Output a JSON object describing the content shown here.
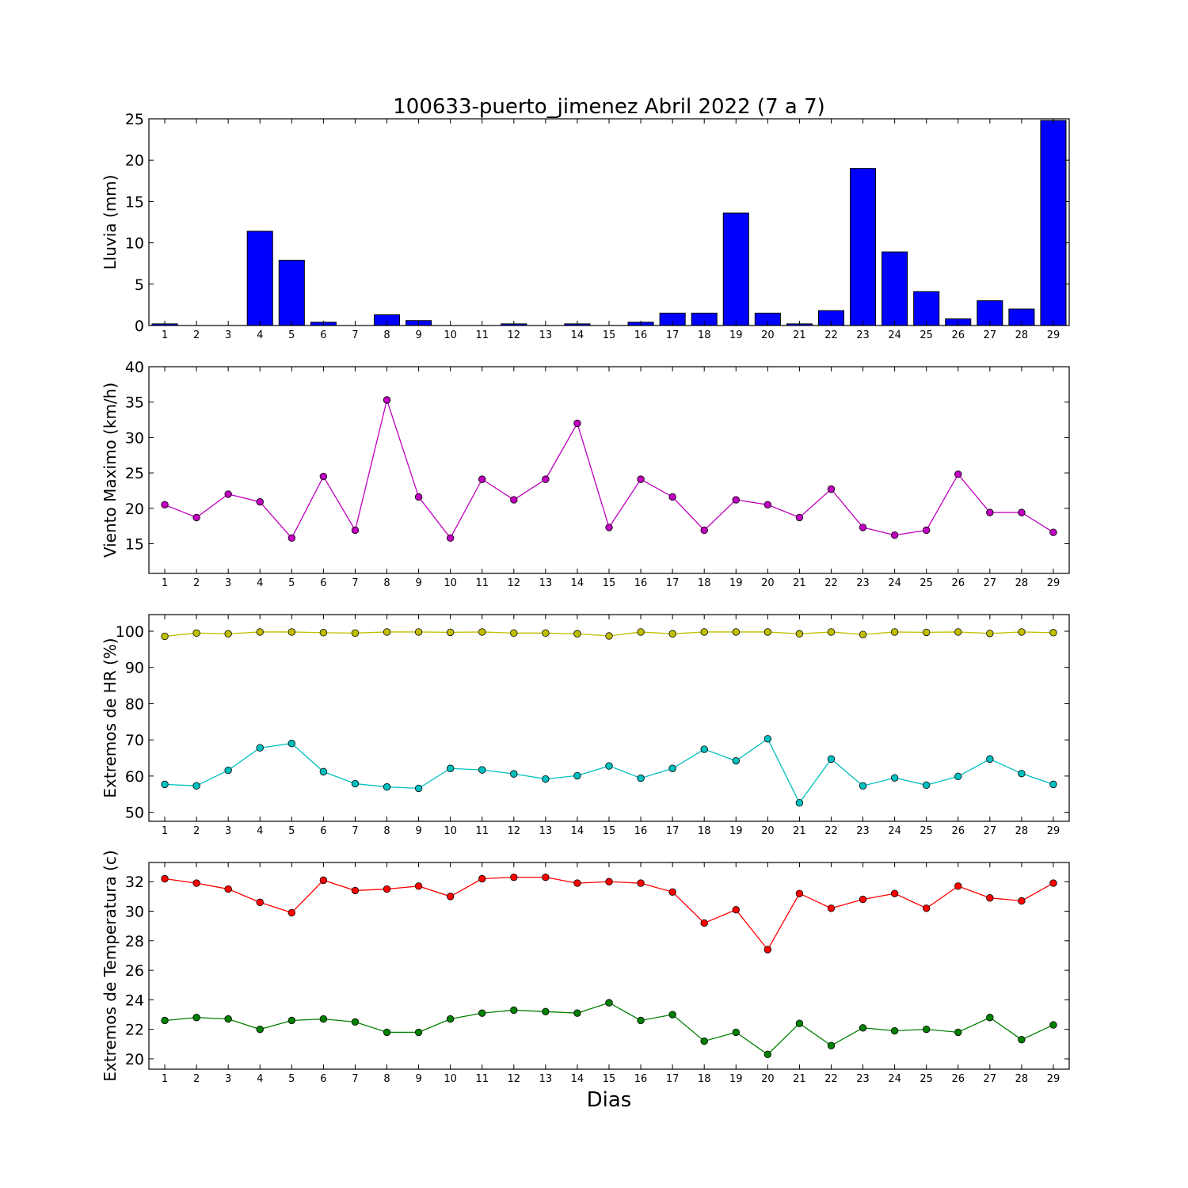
{
  "figure": {
    "title": "100633-puerto_jimenez Abril 2022  (7 a 7)",
    "xlabel": "Dias"
  },
  "chart_data": [
    {
      "type": "bar",
      "ylabel": "Lluvia (mm)",
      "categories": [
        "1",
        "2",
        "3",
        "4",
        "5",
        "6",
        "7",
        "8",
        "9",
        "10",
        "11",
        "12",
        "13",
        "14",
        "15",
        "16",
        "17",
        "18",
        "19",
        "20",
        "21",
        "22",
        "23",
        "24",
        "25",
        "26",
        "27",
        "28",
        "29"
      ],
      "ylim": [
        0,
        25
      ],
      "yticks": [
        0,
        5,
        10,
        15,
        20,
        25
      ],
      "series": [
        {
          "color": "#0000ff",
          "values": [
            0.2,
            0,
            0,
            11.4,
            7.9,
            0.4,
            0,
            1.3,
            0.6,
            0,
            0,
            0.2,
            0,
            0.2,
            0,
            0.4,
            1.5,
            1.5,
            13.6,
            1.5,
            0.2,
            1.8,
            19.0,
            8.9,
            4.1,
            0.8,
            3.0,
            2.0,
            24.8
          ]
        }
      ]
    },
    {
      "type": "line",
      "ylabel": "Viento Maximo (km/h)",
      "categories": [
        "1",
        "2",
        "3",
        "4",
        "5",
        "6",
        "7",
        "8",
        "9",
        "10",
        "11",
        "12",
        "13",
        "14",
        "15",
        "16",
        "17",
        "18",
        "19",
        "20",
        "21",
        "22",
        "23",
        "24",
        "25",
        "26",
        "27",
        "28",
        "29"
      ],
      "ylim": [
        10.8,
        40
      ],
      "yticks": [
        15,
        20,
        25,
        30,
        35,
        40
      ],
      "series": [
        {
          "color": "#bf00bf",
          "values": [
            20.5,
            18.7,
            22.0,
            20.9,
            15.8,
            24.5,
            16.9,
            35.3,
            21.6,
            15.8,
            24.1,
            21.2,
            24.1,
            32.0,
            17.3,
            24.1,
            21.6,
            16.9,
            21.2,
            20.5,
            18.7,
            22.7,
            17.3,
            16.2,
            16.9,
            24.8,
            19.4,
            19.4,
            16.6
          ]
        }
      ]
    },
    {
      "type": "line",
      "ylabel": "Extremos de HR (%)",
      "categories": [
        "1",
        "2",
        "3",
        "4",
        "5",
        "6",
        "7",
        "8",
        "9",
        "10",
        "11",
        "12",
        "13",
        "14",
        "15",
        "16",
        "17",
        "18",
        "19",
        "20",
        "21",
        "22",
        "23",
        "24",
        "25",
        "26",
        "27",
        "28",
        "29"
      ],
      "ylim": [
        47.5,
        104.6
      ],
      "yticks": [
        50,
        60,
        70,
        80,
        90,
        100
      ],
      "series": [
        {
          "color": "#bfbf00",
          "values": [
            98.6,
            99.5,
            99.3,
            99.8,
            99.8,
            99.6,
            99.5,
            99.8,
            99.8,
            99.7,
            99.8,
            99.5,
            99.5,
            99.3,
            98.7,
            99.8,
            99.3,
            99.8,
            99.8,
            99.8,
            99.3,
            99.8,
            99.1,
            99.8,
            99.7,
            99.8,
            99.4,
            99.8,
            99.6
          ]
        },
        {
          "color": "#00bfbf",
          "values": [
            57.7,
            57.3,
            61.6,
            67.8,
            69.0,
            61.2,
            57.9,
            57.0,
            56.6,
            62.1,
            61.7,
            60.6,
            59.2,
            60.1,
            62.8,
            59.4,
            62.1,
            67.4,
            64.2,
            70.3,
            52.6,
            64.7,
            57.3,
            59.5,
            57.5,
            59.9,
            64.7,
            60.7,
            57.7
          ]
        }
      ]
    },
    {
      "type": "line",
      "ylabel": "Extremos de Temperatura (c)",
      "categories": [
        "1",
        "2",
        "3",
        "4",
        "5",
        "6",
        "7",
        "8",
        "9",
        "10",
        "11",
        "12",
        "13",
        "14",
        "15",
        "16",
        "17",
        "18",
        "19",
        "20",
        "21",
        "22",
        "23",
        "24",
        "25",
        "26",
        "27",
        "28",
        "29"
      ],
      "ylim": [
        19.3,
        33.3
      ],
      "yticks": [
        20,
        22,
        24,
        26,
        28,
        30,
        32
      ],
      "series": [
        {
          "color": "#ff0000",
          "values": [
            32.2,
            31.9,
            31.5,
            30.6,
            29.9,
            32.1,
            31.4,
            31.5,
            31.7,
            31.0,
            32.2,
            32.3,
            32.3,
            31.9,
            32.0,
            31.9,
            31.3,
            29.2,
            30.1,
            27.4,
            31.2,
            30.2,
            30.8,
            31.2,
            30.2,
            31.7,
            30.9,
            30.7,
            31.9
          ]
        },
        {
          "color": "#008000",
          "values": [
            22.6,
            22.8,
            22.7,
            22.0,
            22.6,
            22.7,
            22.5,
            21.8,
            21.8,
            22.7,
            23.1,
            23.3,
            23.2,
            23.1,
            23.8,
            22.6,
            23.0,
            21.2,
            21.8,
            20.3,
            22.4,
            20.9,
            22.1,
            21.9,
            22.0,
            21.8,
            22.8,
            21.3,
            22.3
          ]
        }
      ]
    }
  ]
}
